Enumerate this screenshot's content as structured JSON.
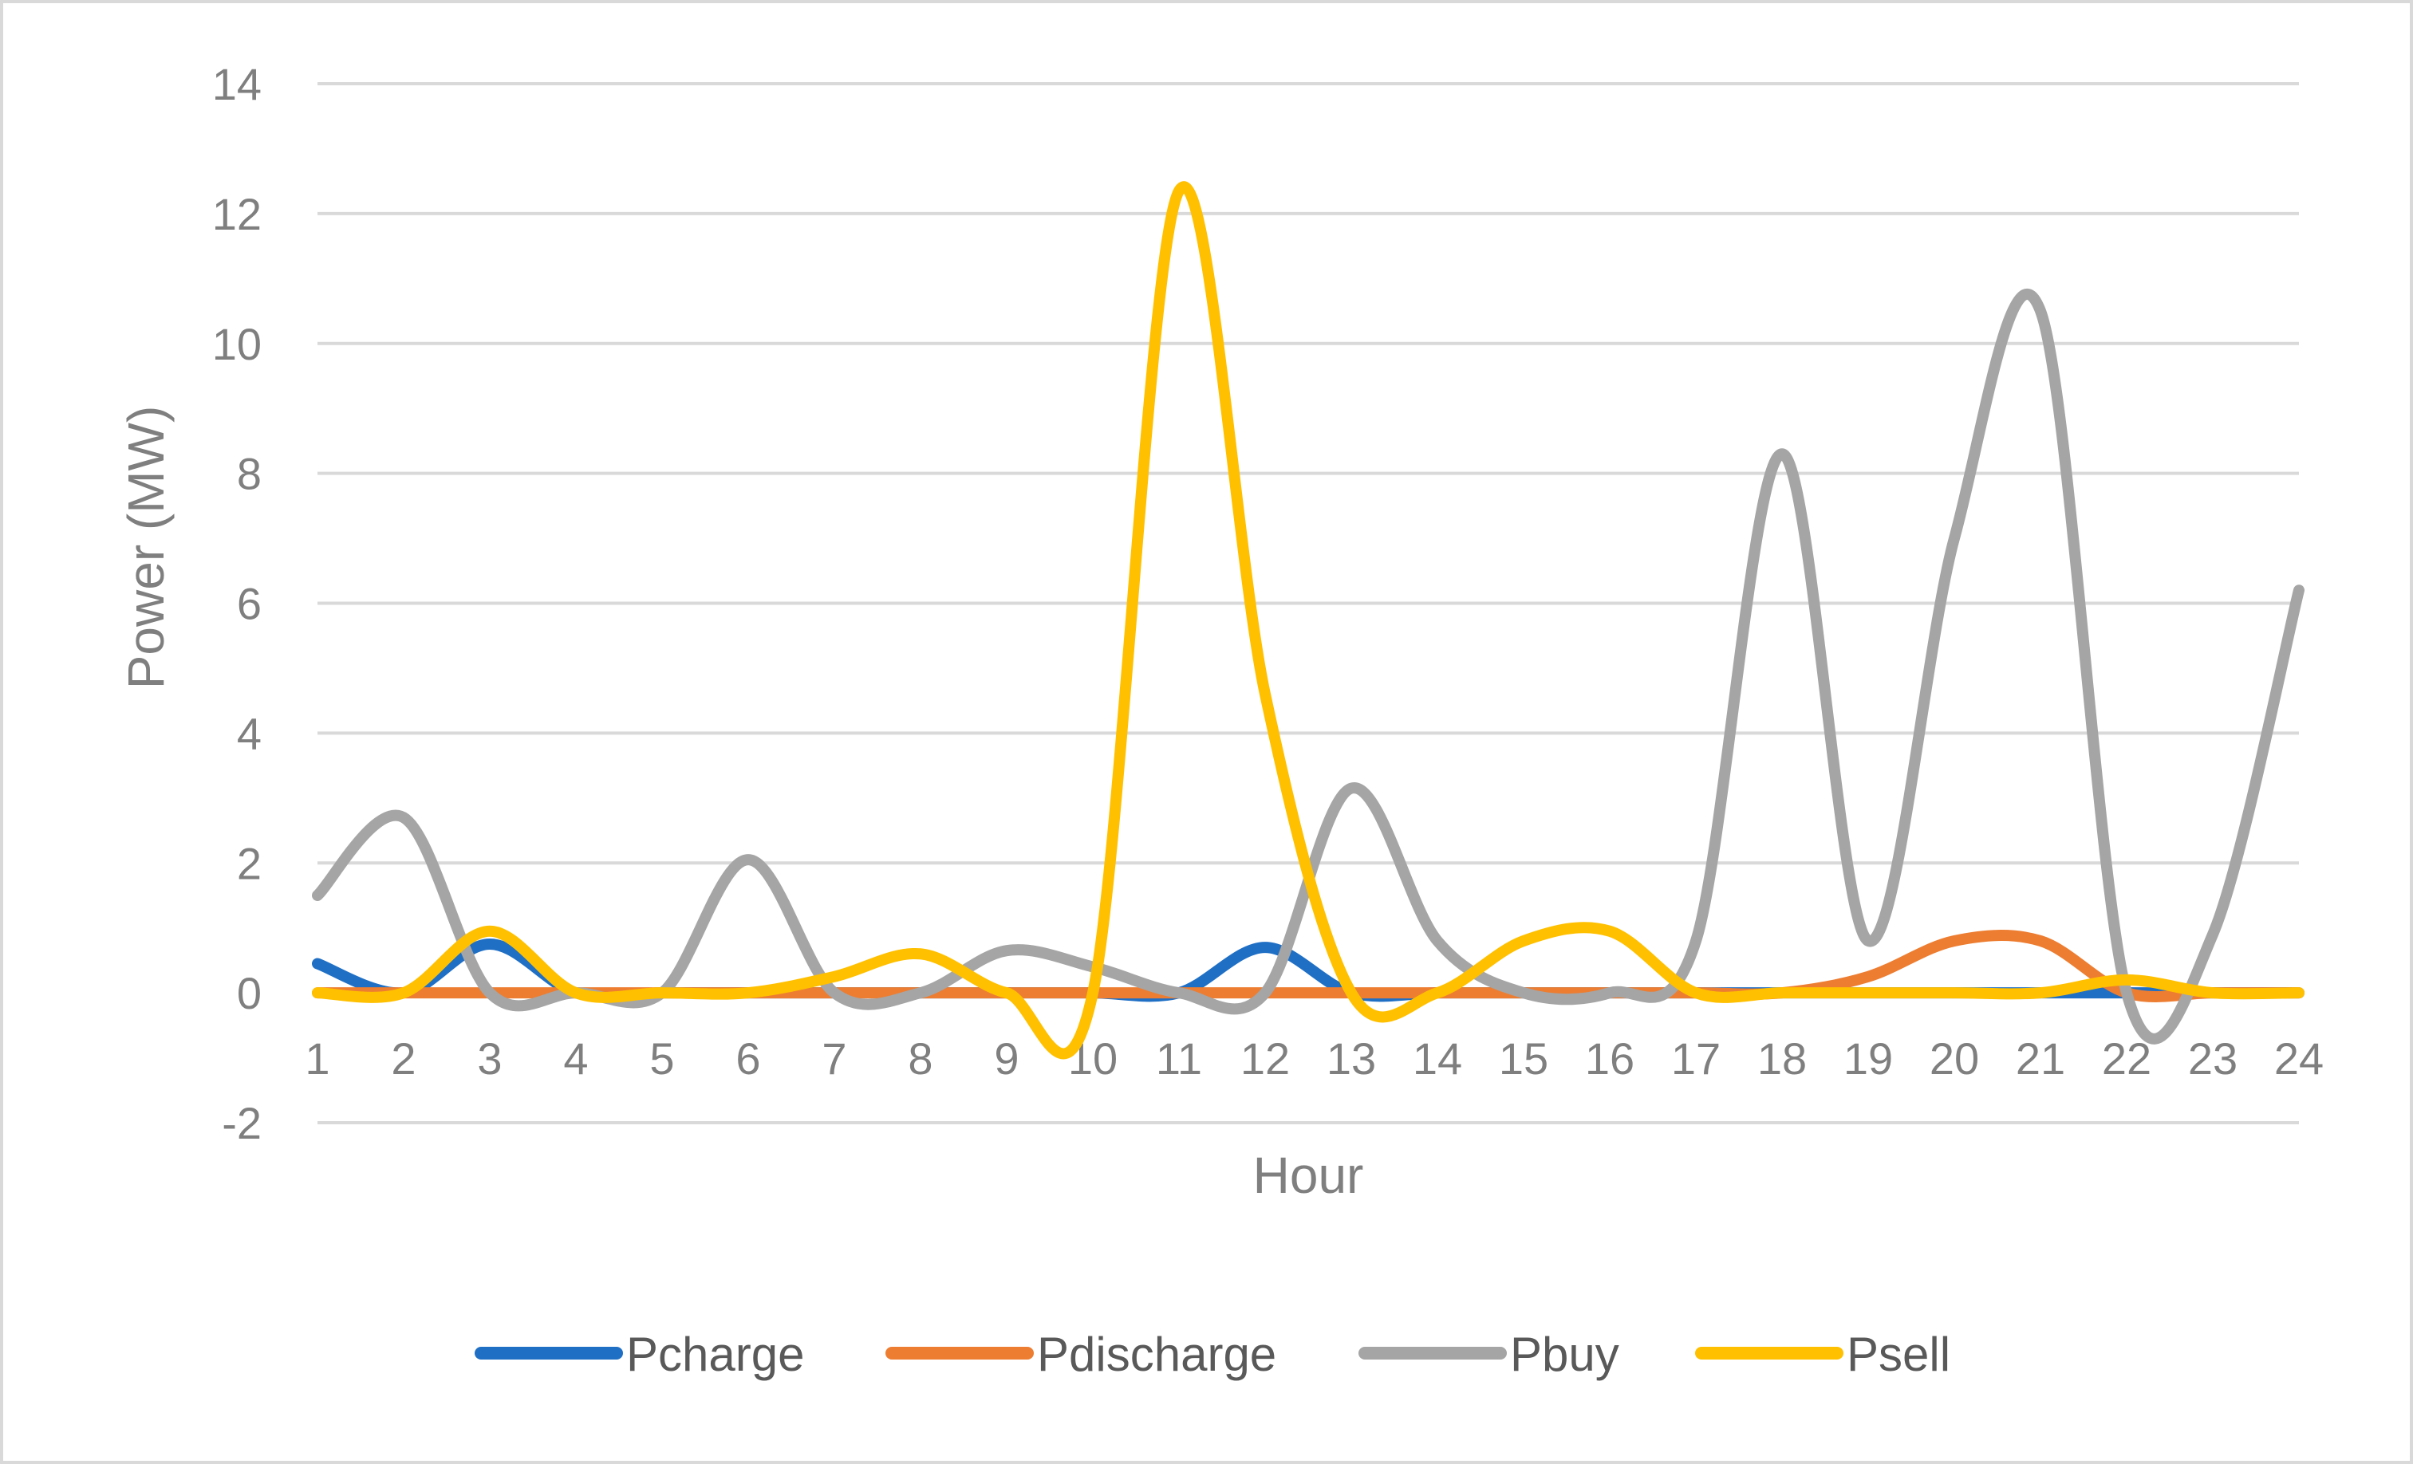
{
  "chart_data": {
    "type": "line",
    "smooth": true,
    "xlabel": "Hour",
    "ylabel": "Power (MW)",
    "x": [
      1,
      2,
      3,
      4,
      5,
      6,
      7,
      8,
      9,
      10,
      11,
      12,
      13,
      14,
      15,
      16,
      17,
      18,
      19,
      20,
      21,
      22,
      23,
      24
    ],
    "ylim": [
      -2,
      14
    ],
    "yticks": [
      -2,
      0,
      2,
      4,
      6,
      8,
      10,
      12,
      14
    ],
    "grid": true,
    "legend_position": "bottom",
    "series": [
      {
        "name": "Pcharge",
        "color": "#1f6fc5",
        "values": [
          0.45,
          0,
          0.75,
          0,
          0,
          0,
          0,
          0,
          0,
          0,
          0,
          0.7,
          0,
          0,
          0,
          0,
          0,
          0,
          0,
          0,
          0,
          0,
          0,
          0
        ]
      },
      {
        "name": "Pdischarge",
        "color": "#ed7d31",
        "values": [
          0,
          0,
          0,
          0,
          0,
          0,
          0,
          0,
          0,
          0,
          0,
          0,
          0,
          0,
          0,
          0,
          0,
          0,
          0.25,
          0.8,
          0.8,
          0,
          0,
          0
        ]
      },
      {
        "name": "Pbuy",
        "color": "#a5a5a5",
        "values": [
          1.5,
          2.7,
          0,
          0,
          0,
          2.05,
          0,
          0,
          0.65,
          0.4,
          0,
          0,
          3.15,
          0.8,
          0,
          0,
          0.8,
          8.3,
          0.8,
          7.0,
          10.5,
          0,
          0.9,
          6.2
        ]
      },
      {
        "name": "Psell",
        "color": "#ffc000",
        "values": [
          0,
          0,
          0.95,
          0,
          0,
          0,
          0.25,
          0.6,
          0,
          0,
          12.35,
          4.6,
          0,
          0,
          0.8,
          0.95,
          0,
          0,
          0,
          0,
          0,
          0.2,
          0,
          0
        ]
      }
    ]
  }
}
